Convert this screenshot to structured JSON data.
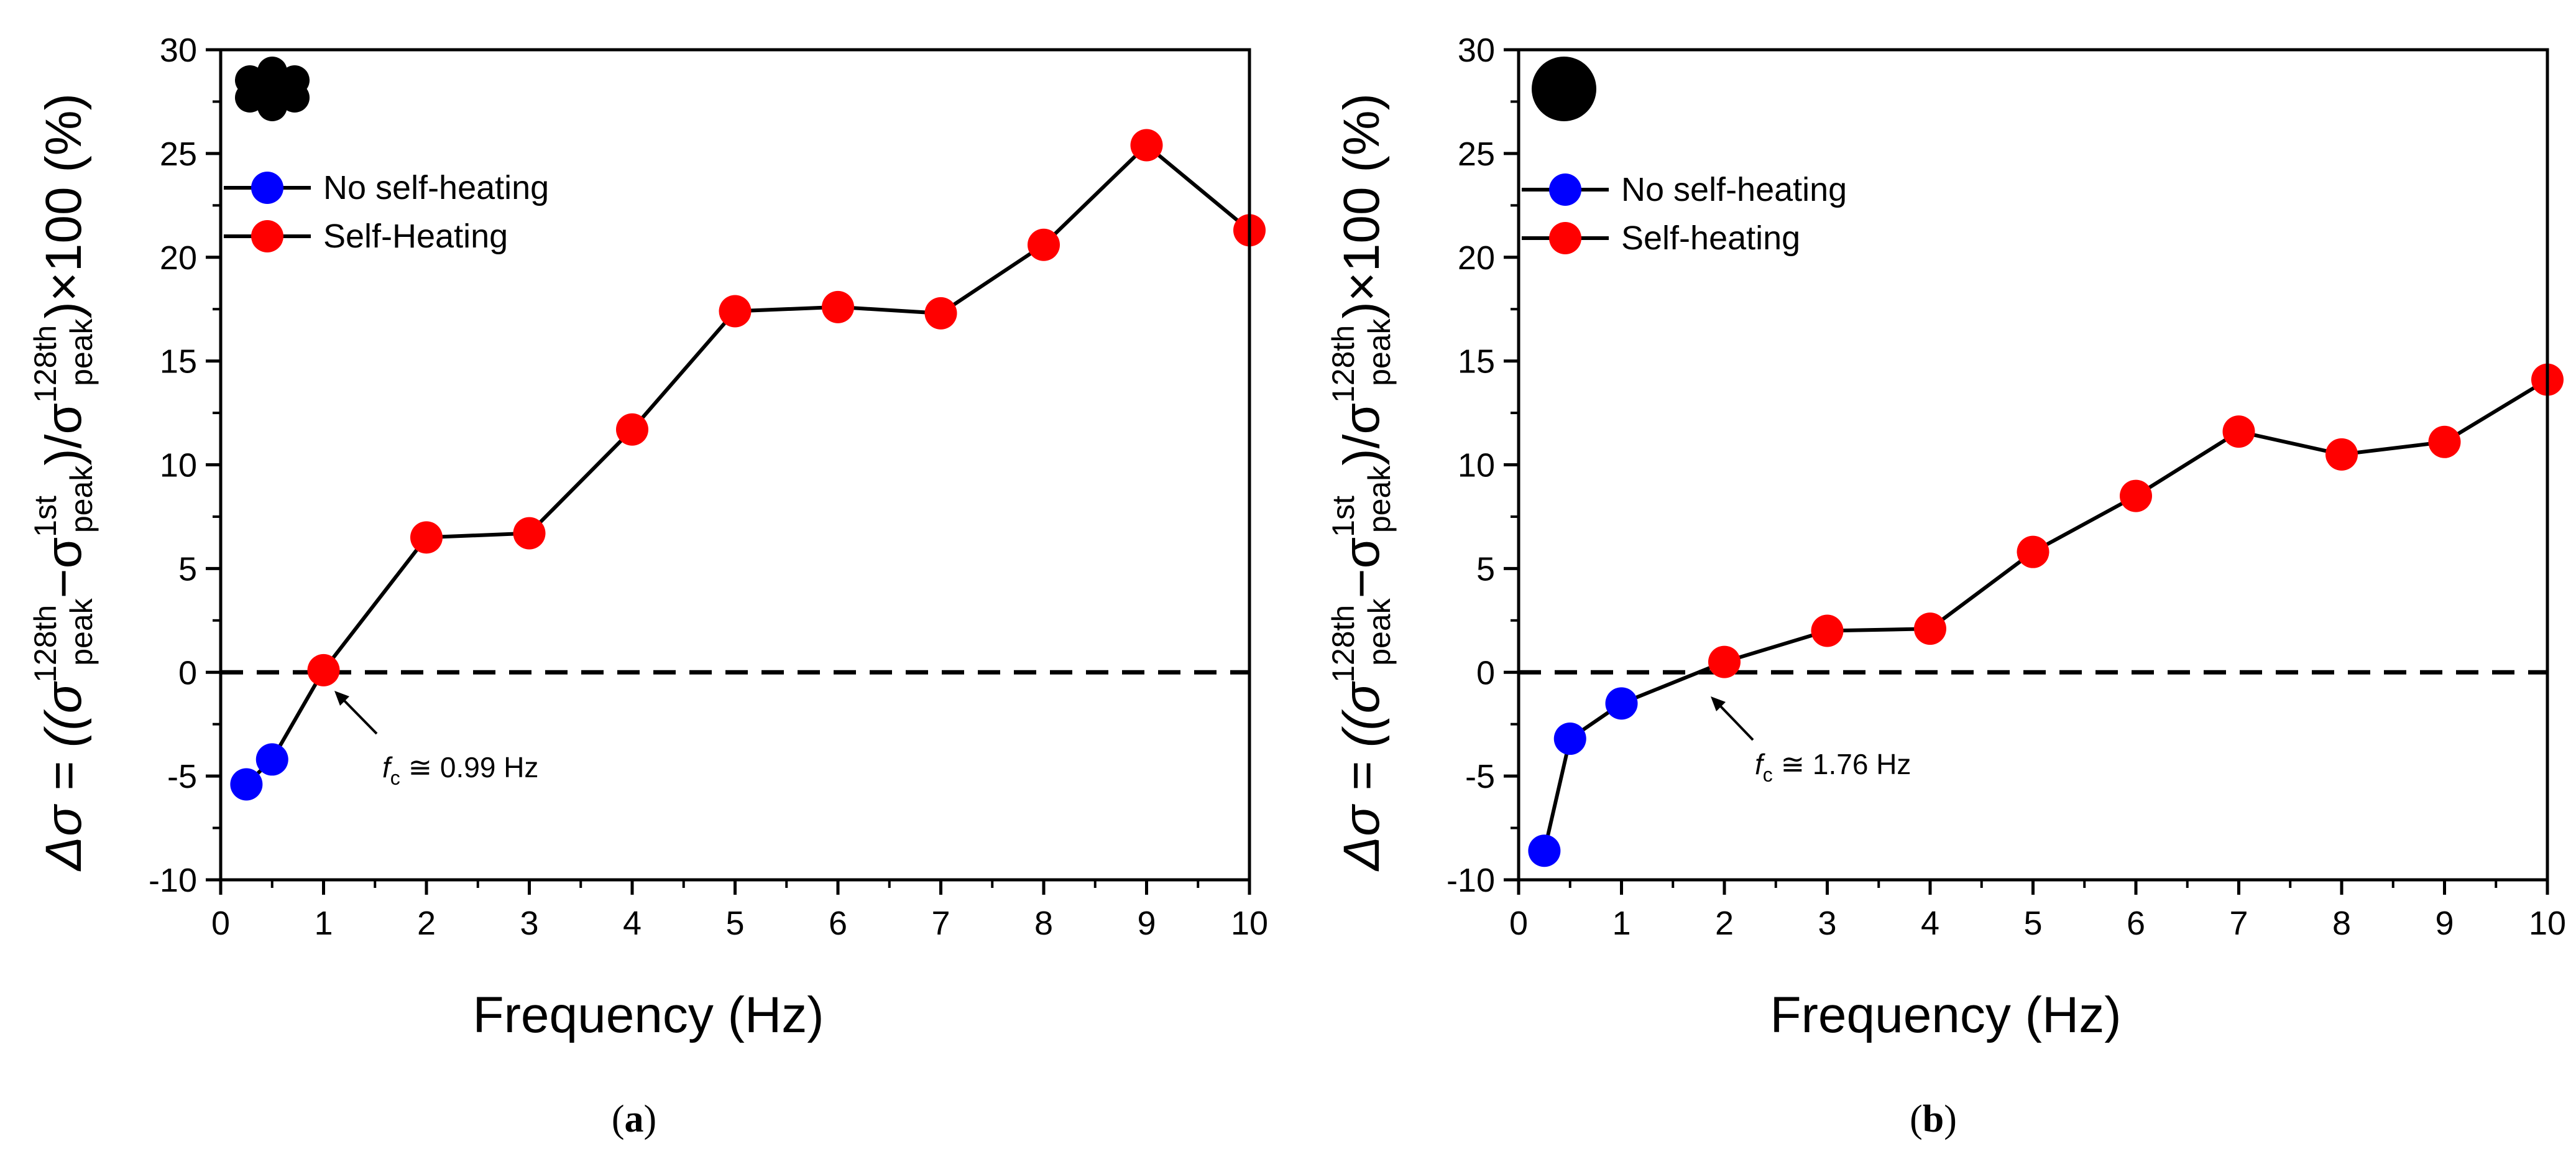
{
  "figure": {
    "colors": {
      "no_self_heating": "#0000ff",
      "self_heating": "#ff0000",
      "line": "#000000",
      "reference_line": "#000000"
    }
  },
  "chart_data": [
    {
      "panel": "a",
      "caption": {
        "open": "(",
        "letter": "a",
        "close": ")"
      },
      "type": "line",
      "xlabel": "Frequency (Hz)",
      "ylabel": {
        "prefix": "Δσ = ((σ",
        "sup1": "128th",
        "sub1": "peak",
        "minus": "−σ",
        "sup2": "1st",
        "sub2": "peak",
        "slash": ")/σ",
        "sup3": "128th",
        "sub3": "peak",
        "suffix": ")×100 (%)"
      },
      "xlim": [
        0,
        10
      ],
      "ylim": [
        -10,
        30
      ],
      "xticks": [
        0,
        1,
        2,
        3,
        4,
        5,
        6,
        7,
        8,
        9,
        10
      ],
      "yticks": [
        -10,
        -5,
        0,
        5,
        10,
        15,
        20,
        25,
        30
      ],
      "reference_line": {
        "y": 0,
        "style": "dashed"
      },
      "inset_icon": "stranded-cable-cross-section-icon",
      "legend": [
        {
          "label": "No self-heating",
          "series": "no_self_heating"
        },
        {
          "label": "Self-Heating",
          "series": "self_heating"
        }
      ],
      "annotation": {
        "symbol": "f",
        "subscript": "c",
        "text": " ≅ 0.99 Hz",
        "x": 0.99,
        "y": 0
      },
      "series": [
        {
          "name": "No self-heating",
          "key": "no_self_heating",
          "points": [
            {
              "x": 0.25,
              "y": -5.4
            },
            {
              "x": 0.5,
              "y": -4.2
            }
          ]
        },
        {
          "name": "Self-Heating",
          "key": "self_heating",
          "points": [
            {
              "x": 1,
              "y": 0.1
            },
            {
              "x": 2,
              "y": 6.5
            },
            {
              "x": 3,
              "y": 6.7
            },
            {
              "x": 4,
              "y": 11.7
            },
            {
              "x": 5,
              "y": 17.4
            },
            {
              "x": 6,
              "y": 17.6
            },
            {
              "x": 7,
              "y": 17.3
            },
            {
              "x": 8,
              "y": 20.6
            },
            {
              "x": 9,
              "y": 25.4
            },
            {
              "x": 10,
              "y": 21.3
            }
          ]
        }
      ]
    },
    {
      "panel": "b",
      "caption": {
        "open": "(",
        "letter": "b",
        "close": ")"
      },
      "type": "line",
      "xlabel": "Frequency (Hz)",
      "ylabel": {
        "prefix": "Δσ = ((σ",
        "sup1": "128th",
        "sub1": "peak",
        "minus": "−σ",
        "sup2": "1st",
        "sub2": "peak",
        "slash": ")/σ",
        "sup3": "128th",
        "sub3": "peak",
        "suffix": ")×100 (%)"
      },
      "xlim": [
        0,
        10
      ],
      "ylim": [
        -10,
        30
      ],
      "xticks": [
        0,
        1,
        2,
        3,
        4,
        5,
        6,
        7,
        8,
        9,
        10
      ],
      "yticks": [
        -10,
        -5,
        0,
        5,
        10,
        15,
        20,
        25,
        30
      ],
      "reference_line": {
        "y": 0,
        "style": "dashed"
      },
      "inset_icon": "solid-cable-cross-section-icon",
      "legend": [
        {
          "label": "No self-heating",
          "series": "no_self_heating"
        },
        {
          "label": "Self-heating",
          "series": "self_heating"
        }
      ],
      "annotation": {
        "symbol": "f",
        "subscript": "c",
        "text": " ≅ 1.76 Hz",
        "x": 1.76,
        "y": 0
      },
      "series": [
        {
          "name": "No self-heating",
          "key": "no_self_heating",
          "points": [
            {
              "x": 0.25,
              "y": -8.6
            },
            {
              "x": 0.5,
              "y": -3.2
            },
            {
              "x": 1,
              "y": -1.5
            }
          ]
        },
        {
          "name": "Self-heating",
          "key": "self_heating",
          "points": [
            {
              "x": 2,
              "y": 0.5
            },
            {
              "x": 3,
              "y": 2.0
            },
            {
              "x": 4,
              "y": 2.1
            },
            {
              "x": 5,
              "y": 5.8
            },
            {
              "x": 6,
              "y": 8.5
            },
            {
              "x": 7,
              "y": 11.6
            },
            {
              "x": 8,
              "y": 10.5
            },
            {
              "x": 9,
              "y": 11.1
            },
            {
              "x": 10,
              "y": 14.1
            }
          ]
        }
      ]
    }
  ]
}
